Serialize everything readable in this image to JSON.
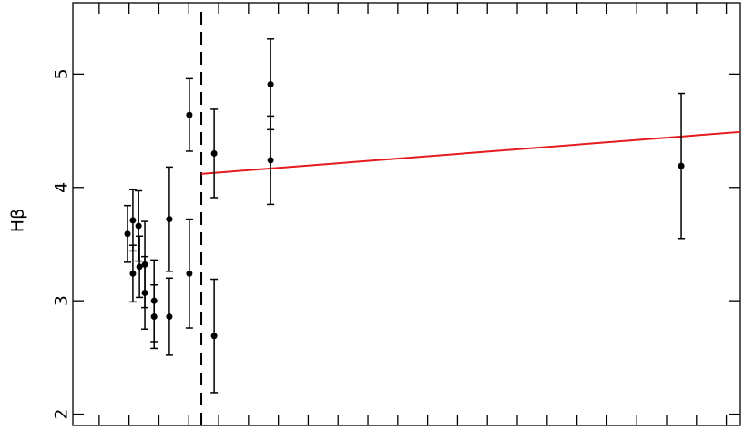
{
  "chart_data": {
    "type": "scatter",
    "y_label": "Hβ",
    "x": [
      1.95,
      2.13,
      2.13,
      2.32,
      2.35,
      2.53,
      2.53,
      2.84,
      2.84,
      3.35,
      3.35,
      4.02,
      4.02,
      4.85,
      4.85,
      6.74,
      6.74,
      20.49
    ],
    "series": [
      {
        "color": "#000000",
        "values": [
          3.59,
          3.71,
          3.24,
          3.66,
          3.3,
          3.32,
          3.07,
          3.0,
          2.86,
          3.72,
          2.86,
          4.64,
          3.24,
          4.3,
          2.69,
          4.91,
          4.24,
          4.19
        ],
        "errors": [
          0.25,
          0.27,
          0.25,
          0.31,
          0.27,
          0.38,
          0.32,
          0.36,
          0.28,
          0.46,
          0.34,
          0.32,
          0.48,
          0.39,
          0.5,
          0.4,
          0.39,
          0.64
        ]
      }
    ],
    "reference_line": {
      "x": 4.42,
      "dashed": true,
      "color": "#000000"
    },
    "fit_line": {
      "x": [
        4.42,
        22.47
      ],
      "y": [
        4.12,
        4.49
      ],
      "color": "#e41a1c"
    },
    "xlim": [
      0.12,
      22.47
    ],
    "ylim": [
      1.9,
      5.63
    ],
    "xticks": [
      1,
      2,
      3,
      4,
      5,
      6,
      7,
      8,
      9,
      10,
      11,
      12,
      13,
      14,
      15,
      16,
      17,
      18,
      19,
      20,
      21,
      22
    ],
    "yticks": [
      2,
      3,
      4,
      5
    ]
  }
}
